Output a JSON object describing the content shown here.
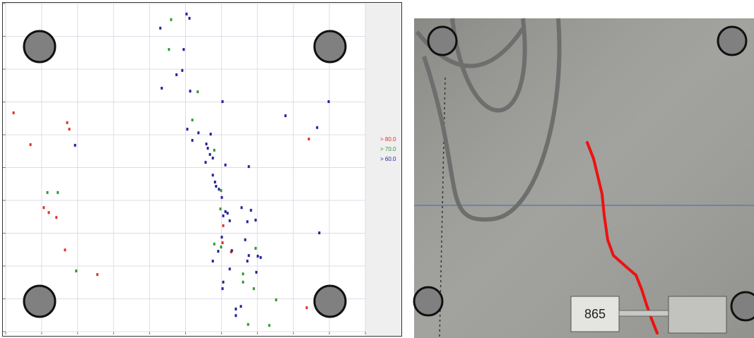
{
  "chart_data": {
    "type": "scatter",
    "xlim": [
      0,
      10
    ],
    "ylim": [
      0,
      10
    ],
    "xticks": [
      0,
      1,
      2,
      3,
      4,
      5,
      6,
      7,
      8,
      9,
      10
    ],
    "yticks": [
      0,
      1,
      2,
      3,
      4,
      5,
      6,
      7,
      8,
      9,
      10
    ],
    "grid": true,
    "legend": "right",
    "series": [
      {
        "name": "> 80.0",
        "color": "#e0302a",
        "x": [
          0.22,
          1.71,
          1.77,
          0.69,
          1.06,
          1.2,
          1.41,
          1.65,
          2.55,
          8.43,
          8.37,
          6.05,
          6.03,
          6.27
        ],
        "values": [
          6.67,
          6.37,
          6.17,
          5.7,
          3.78,
          3.63,
          3.48,
          2.49,
          1.74,
          5.87,
          0.73,
          3.23,
          2.71,
          2.43
        ]
      },
      {
        "name": "> 70.0",
        "color": "#2e9a2e",
        "x": [
          4.6,
          4.54,
          5.34,
          5.19,
          5.8,
          1.16,
          1.45,
          1.96,
          5.99,
          5.97,
          5.8,
          5.99,
          6.95,
          6.6,
          6.6,
          6.9,
          7.52,
          6.74,
          7.33
        ],
        "values": [
          9.51,
          8.6,
          7.31,
          6.45,
          5.53,
          4.24,
          4.24,
          1.85,
          4.3,
          3.74,
          2.67,
          2.58,
          2.54,
          1.76,
          1.51,
          1.31,
          0.97,
          0.22,
          0.19
        ]
      },
      {
        "name": "> 60.0",
        "color": "#22229a",
        "x": [
          5.03,
          5.11,
          4.3,
          4.95,
          4.91,
          4.75,
          4.34,
          5.13,
          6.03,
          8.98,
          7.78,
          8.66,
          5.05,
          5.36,
          5.7,
          5.19,
          5.58,
          5.62,
          5.68,
          5.76,
          5.56,
          6.11,
          6.76,
          5.76,
          5.82,
          5.85,
          5.93,
          6.01,
          6.56,
          6.11,
          6.17,
          6.05,
          6.82,
          6.23,
          6.72,
          6.95,
          8.72,
          6.01,
          6.66,
          6.29,
          5.91,
          6.76,
          7.01,
          7.09,
          5.76,
          6.72,
          6.23,
          6.97,
          6.05,
          6.03,
          6.4,
          6.54,
          6.4,
          1.93
        ],
        "values": [
          9.68,
          9.55,
          9.25,
          8.6,
          7.96,
          7.83,
          7.42,
          7.33,
          7.01,
          7.01,
          6.58,
          6.22,
          6.17,
          6.06,
          6.02,
          5.83,
          5.72,
          5.59,
          5.4,
          5.29,
          5.16,
          5.08,
          5.03,
          4.77,
          4.56,
          4.43,
          4.34,
          4.09,
          3.78,
          3.66,
          3.61,
          3.53,
          3.7,
          3.38,
          3.35,
          3.4,
          3.01,
          2.88,
          2.8,
          2.47,
          2.45,
          2.32,
          2.3,
          2.26,
          2.15,
          2.15,
          1.91,
          1.81,
          1.51,
          1.31,
          0.69,
          0.77,
          0.49,
          5.68
        ]
      }
    ]
  },
  "photo": {
    "label": "865"
  }
}
